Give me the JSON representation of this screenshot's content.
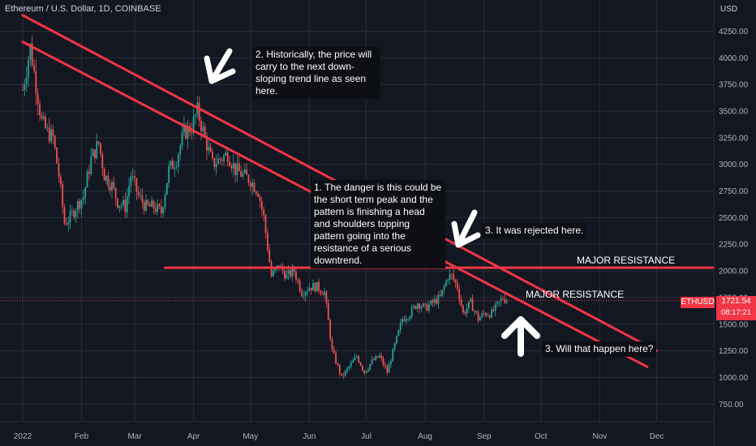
{
  "header": {
    "title": "Ethereum / U.S. Dollar, 1D, COINBASE",
    "currency": "USD"
  },
  "price_tag": {
    "symbol": "ETHUSD",
    "price": "1721.54",
    "countdown": "08:17:21"
  },
  "annotations": {
    "note_1": "1. The danger is this could be the short term peak and the pattern is finishing a head and shoulders topping pattern going into the resistance of a serious downtrend.",
    "note_2": "2. Historically, the price will carry to the next down-sloping trend line as seen here.",
    "note_3a": "3. It was rejected here.",
    "note_3b": "3. Will that happen here?",
    "resistance_1": "MAJOR RESISTANCE",
    "resistance_2": "MAJOR RESISTANCE"
  },
  "colors": {
    "background": "#131722",
    "up": "#26a69a",
    "down": "#ef5350",
    "trendline": "#f23645",
    "grid": "#2a2e39"
  },
  "chart_data": {
    "type": "candlestick",
    "title": "Ethereum / U.S. Dollar, 1D, COINBASE",
    "x_ticks": [
      "2022",
      "Feb",
      "Mar",
      "Apr",
      "May",
      "Jun",
      "Jul",
      "Aug",
      "Sep",
      "Oct",
      "Nov",
      "Dec"
    ],
    "y_ticks": [
      750,
      1000,
      1250,
      1500,
      1750,
      2000,
      2250,
      2500,
      2750,
      3000,
      3250,
      3500,
      3750,
      4000,
      4250
    ],
    "ylim": [
      550,
      4500
    ],
    "grid": true,
    "last_price": 1721.54,
    "price_path": [
      [
        "2022-01-01",
        3700
      ],
      [
        "2022-01-05",
        4100
      ],
      [
        "2022-01-08",
        3750
      ],
      [
        "2022-01-11",
        3400
      ],
      [
        "2022-01-14",
        3300
      ],
      [
        "2022-01-17",
        3250
      ],
      [
        "2022-01-20",
        2900
      ],
      [
        "2022-01-23",
        2450
      ],
      [
        "2022-01-26",
        2500
      ],
      [
        "2022-01-29",
        2600
      ],
      [
        "2022-02-02",
        2700
      ],
      [
        "2022-02-06",
        3050
      ],
      [
        "2022-02-10",
        3200
      ],
      [
        "2022-02-13",
        2900
      ],
      [
        "2022-02-17",
        2800
      ],
      [
        "2022-02-20",
        2650
      ],
      [
        "2022-02-24",
        2600
      ],
      [
        "2022-02-27",
        2900
      ],
      [
        "2022-03-03",
        2700
      ],
      [
        "2022-03-07",
        2600
      ],
      [
        "2022-03-11",
        2600
      ],
      [
        "2022-03-15",
        2550
      ],
      [
        "2022-03-19",
        2950
      ],
      [
        "2022-03-23",
        3050
      ],
      [
        "2022-03-27",
        3300
      ],
      [
        "2022-03-31",
        3350
      ],
      [
        "2022-04-03",
        3500
      ],
      [
        "2022-04-07",
        3250
      ],
      [
        "2022-04-11",
        3000
      ],
      [
        "2022-04-15",
        3050
      ],
      [
        "2022-04-19",
        3100
      ],
      [
        "2022-04-23",
        2950
      ],
      [
        "2022-04-27",
        2900
      ],
      [
        "2022-05-01",
        2850
      ],
      [
        "2022-05-05",
        2750
      ],
      [
        "2022-05-08",
        2500
      ],
      [
        "2022-05-12",
        1950
      ],
      [
        "2022-05-16",
        2050
      ],
      [
        "2022-05-20",
        1950
      ],
      [
        "2022-05-24",
        2000
      ],
      [
        "2022-05-28",
        1800
      ],
      [
        "2022-06-01",
        1850
      ],
      [
        "2022-06-05",
        1850
      ],
      [
        "2022-06-09",
        1800
      ],
      [
        "2022-06-13",
        1250
      ],
      [
        "2022-06-16",
        1100
      ],
      [
        "2022-06-18",
        1000
      ],
      [
        "2022-06-22",
        1100
      ],
      [
        "2022-06-26",
        1200
      ],
      [
        "2022-06-30",
        1050
      ],
      [
        "2022-07-04",
        1150
      ],
      [
        "2022-07-08",
        1200
      ],
      [
        "2022-07-12",
        1050
      ],
      [
        "2022-07-16",
        1300
      ],
      [
        "2022-07-20",
        1550
      ],
      [
        "2022-07-24",
        1600
      ],
      [
        "2022-07-28",
        1700
      ],
      [
        "2022-08-01",
        1650
      ],
      [
        "2022-08-05",
        1700
      ],
      [
        "2022-08-09",
        1750
      ],
      [
        "2022-08-13",
        1950
      ],
      [
        "2022-08-15",
        1950
      ],
      [
        "2022-08-18",
        1850
      ],
      [
        "2022-08-21",
        1600
      ],
      [
        "2022-08-25",
        1700
      ],
      [
        "2022-08-29",
        1550
      ],
      [
        "2022-09-01",
        1600
      ],
      [
        "2022-09-05",
        1600
      ],
      [
        "2022-09-09",
        1700
      ],
      [
        "2022-09-11",
        1750
      ],
      [
        "2022-09-13",
        1721
      ]
    ],
    "trendlines": [
      {
        "name": "upper trendline",
        "points": [
          [
            "2022-01-01",
            4400
          ],
          [
            "2022-12-01",
            1250
          ]
        ]
      },
      {
        "name": "lower trendline",
        "points": [
          [
            "2022-01-01",
            4150
          ],
          [
            "2022-11-26",
            1100
          ]
        ]
      },
      {
        "name": "major resistance",
        "points": [
          [
            "2022-03-17",
            2030
          ],
          [
            "2022-12-31",
            2030
          ]
        ]
      }
    ]
  }
}
